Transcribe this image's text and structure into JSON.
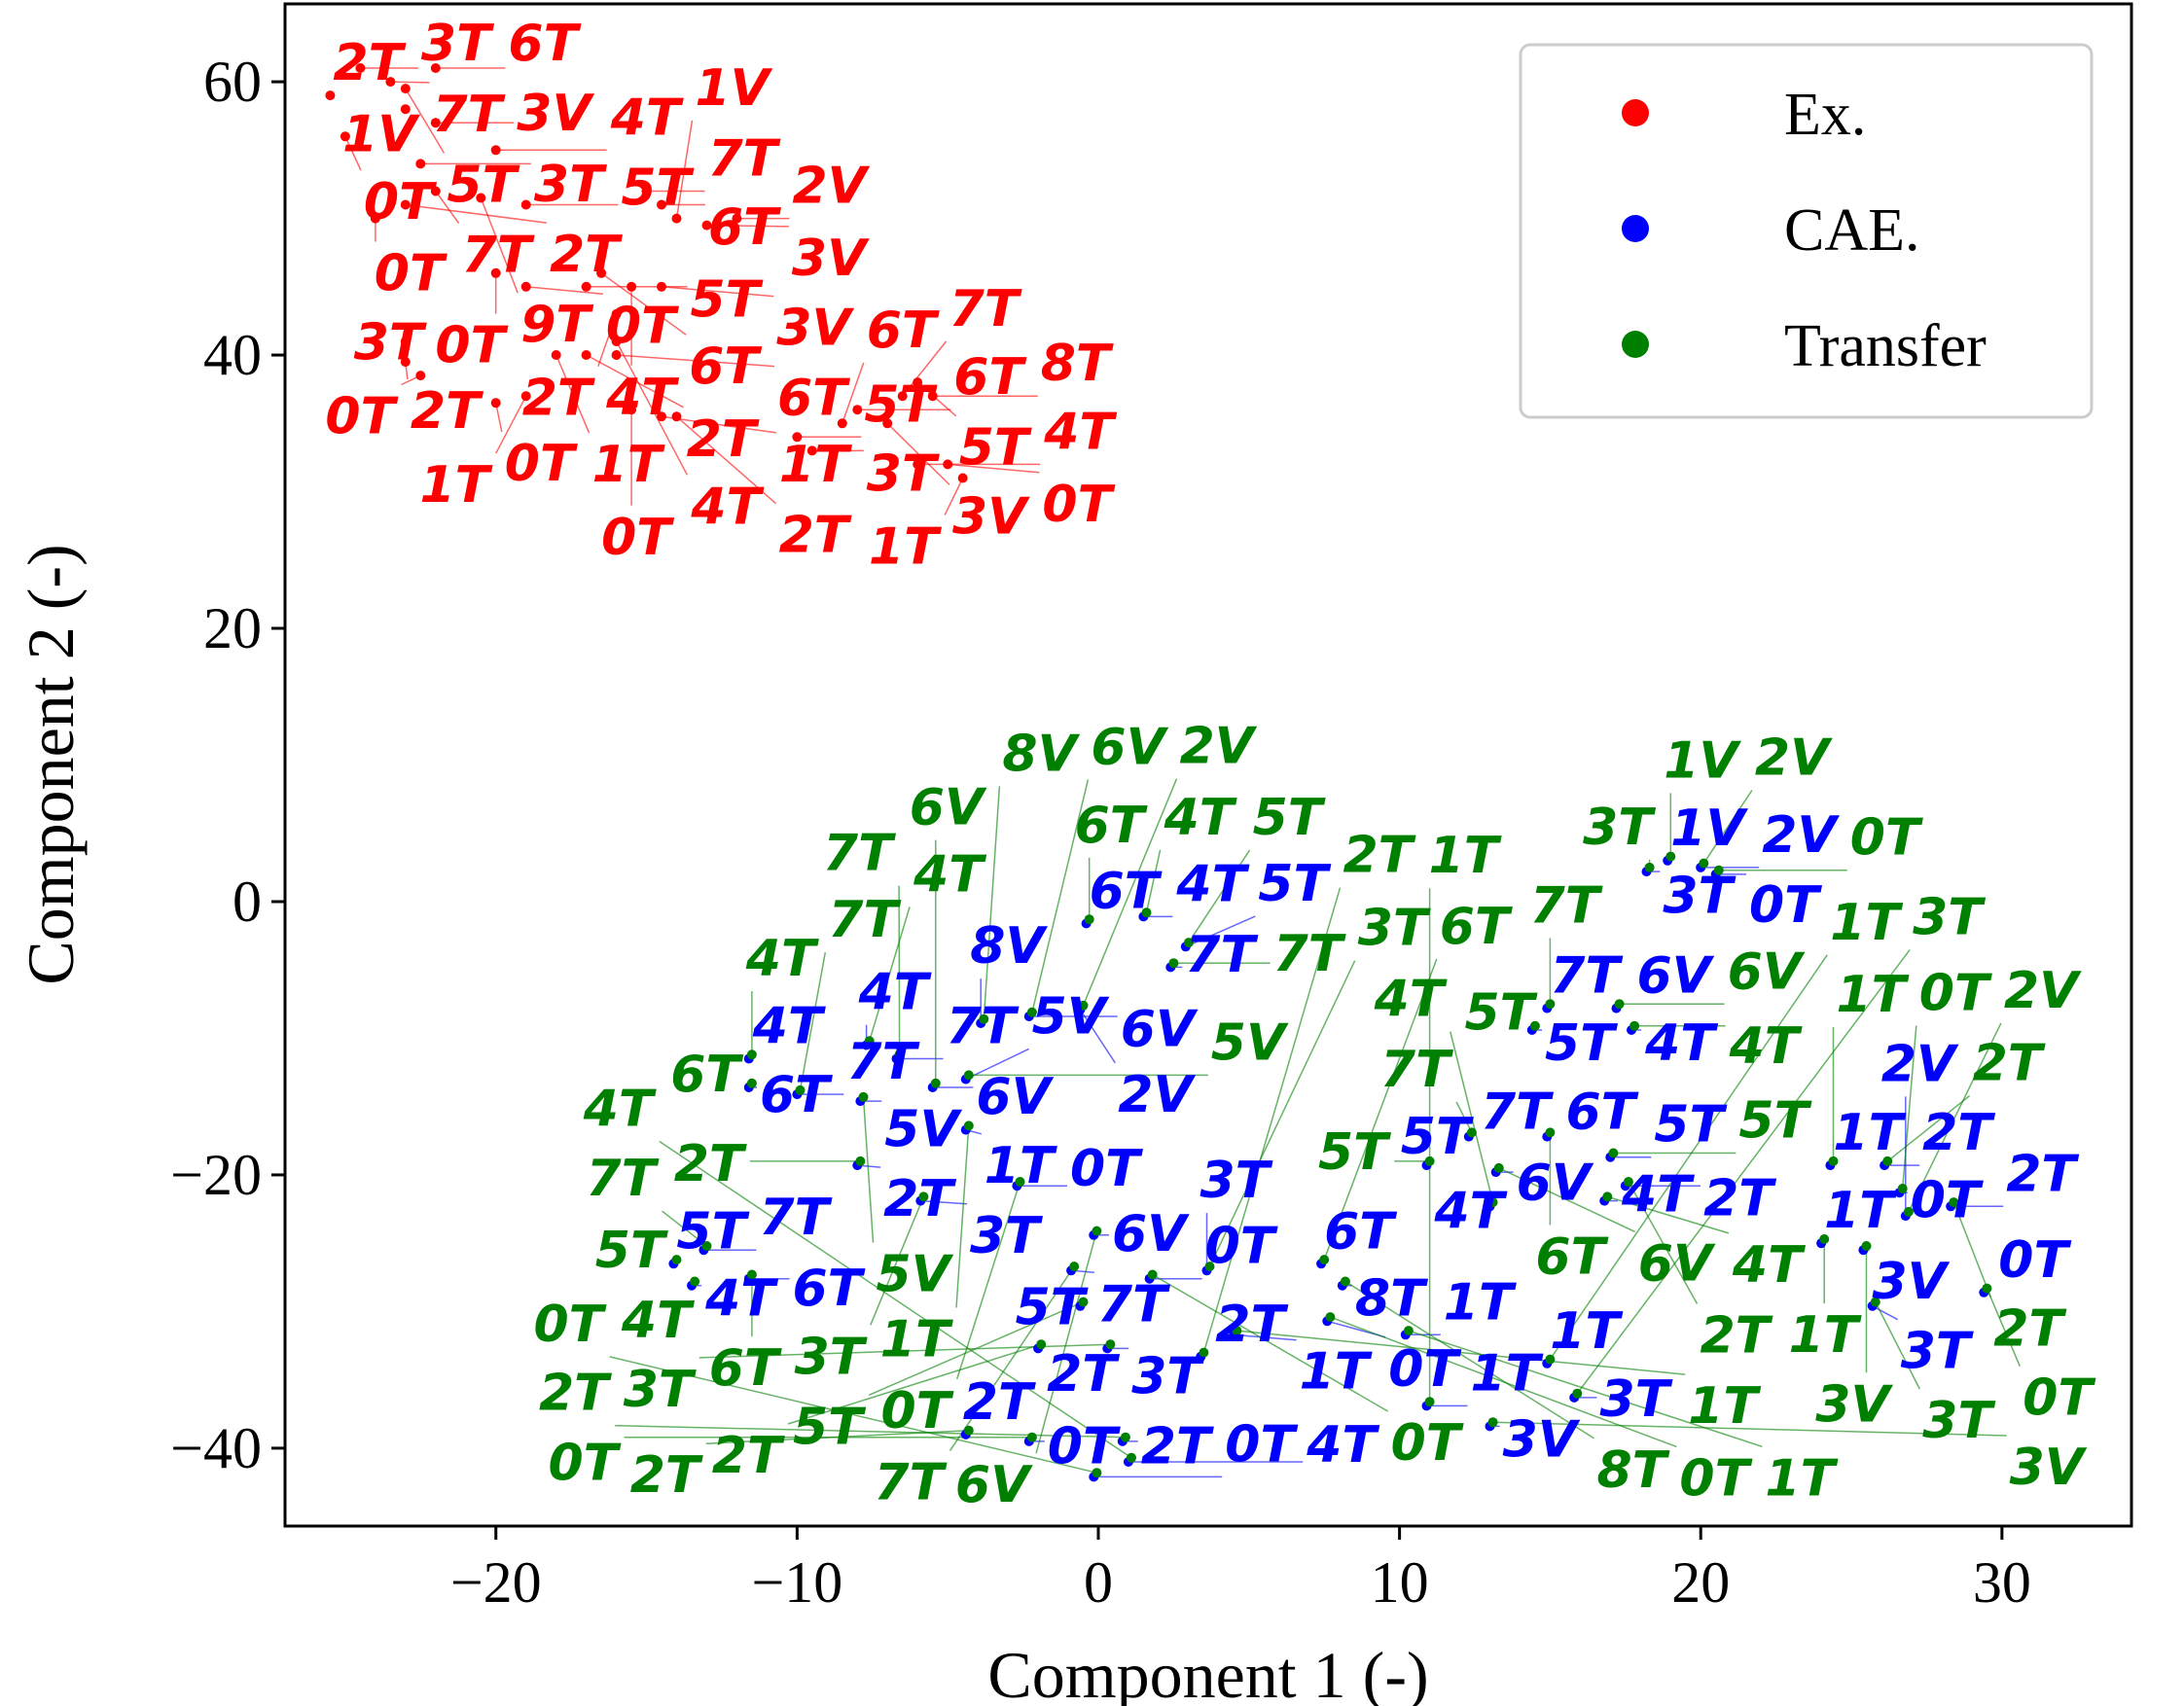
{
  "chart_data": {
    "type": "scatter",
    "xlabel": "Component 1 (-)",
    "ylabel": "Component 2 (-)",
    "xlim": [
      -27,
      34.3
    ],
    "ylim": [
      -45.7,
      65.7
    ],
    "xticks": [
      -20,
      -10,
      0,
      10,
      20,
      30
    ],
    "yticks": [
      -40,
      -20,
      0,
      20,
      40,
      60
    ],
    "xtick_labels": [
      "−20",
      "−10",
      "0",
      "10",
      "20",
      "30"
    ],
    "ytick_labels": [
      "−40",
      "−20",
      "0",
      "20",
      "40",
      "60"
    ],
    "grid": false,
    "legend_position": "top-right",
    "series": [
      {
        "name": "Ex.",
        "color": "#ff0000",
        "points": [
          [
            "2T",
            -25.5,
            59
          ],
          [
            "3T",
            -24.5,
            61
          ],
          [
            "7T",
            -23.5,
            60
          ],
          [
            "6T",
            -22,
            61
          ],
          [
            "1V",
            -23,
            58
          ],
          [
            "0T",
            -25,
            56
          ],
          [
            "3V",
            -22,
            57
          ],
          [
            "5T",
            -23,
            59.5
          ],
          [
            "3T",
            -22.5,
            54
          ],
          [
            "4T",
            -20,
            55
          ],
          [
            "7T",
            -22,
            52
          ],
          [
            "0T",
            -24,
            50
          ],
          [
            "2T",
            -23,
            51
          ],
          [
            "5T",
            -19,
            51
          ],
          [
            "9T",
            -20.5,
            51.5
          ],
          [
            "7T",
            -15,
            52
          ],
          [
            "6T",
            -14.5,
            51
          ],
          [
            "1V",
            -14,
            50
          ],
          [
            "2V",
            -12,
            50
          ],
          [
            "3V",
            -13,
            49.5
          ],
          [
            "0T",
            -20,
            46
          ],
          [
            "0T",
            -19,
            45
          ],
          [
            "5T",
            -17,
            45
          ],
          [
            "6T",
            -16.5,
            46
          ],
          [
            "4T",
            -15.5,
            45
          ],
          [
            "3V",
            -14.5,
            45
          ],
          [
            "2T",
            -16,
            43
          ],
          [
            "3T",
            -23,
            41
          ],
          [
            "2T",
            -23,
            39.5
          ],
          [
            "0T",
            -22.5,
            38.5
          ],
          [
            "1T",
            -18,
            40
          ],
          [
            "2T",
            -17,
            40
          ],
          [
            "0T",
            -20,
            36.5
          ],
          [
            "1T",
            -19,
            37
          ],
          [
            "6T",
            -16,
            40
          ],
          [
            "4T",
            -16,
            41
          ],
          [
            "0T",
            -15.5,
            36
          ],
          [
            "1T",
            -14.5,
            35.5
          ],
          [
            "2T",
            -14,
            35.5
          ],
          [
            "5T",
            -10,
            34
          ],
          [
            "3T",
            -9.5,
            33
          ],
          [
            "6T",
            -8.5,
            35
          ],
          [
            "6T",
            -8,
            36
          ],
          [
            "7T",
            -6.5,
            37
          ],
          [
            "5T",
            -6,
            38
          ],
          [
            "8T",
            -5.5,
            37
          ],
          [
            "3V",
            -7,
            35
          ],
          [
            "4T",
            -6,
            32
          ],
          [
            "0T",
            -5,
            32
          ],
          [
            "1T",
            -4.5,
            31
          ]
        ]
      },
      {
        "name": "CAE.",
        "color": "#0000ff",
        "points": [
          [
            "6T",
            -0.4,
            -1.6
          ],
          [
            "4T",
            1.5,
            -1.1
          ],
          [
            "7T",
            2.4,
            -4.8
          ],
          [
            "5T",
            2.9,
            -3.3
          ],
          [
            "1V",
            18.9,
            3.0
          ],
          [
            "2V",
            20.0,
            2.5
          ],
          [
            "3T",
            18.2,
            2.2
          ],
          [
            "0T",
            20.5,
            2.0
          ],
          [
            "7T",
            14.9,
            -7.8
          ],
          [
            "6V",
            17.2,
            -7.8
          ],
          [
            "5T",
            14.4,
            -9.4
          ],
          [
            "4T",
            17.7,
            -9.4
          ],
          [
            "7T",
            12.3,
            -17.2
          ],
          [
            "6T",
            14.9,
            -17.2
          ],
          [
            "5T",
            10.9,
            -19.3
          ],
          [
            "6V",
            13.2,
            -19.8
          ],
          [
            "5T",
            17.0,
            -18.7
          ],
          [
            "4T",
            13.0,
            -22.3
          ],
          [
            "4T",
            16.8,
            -21.9
          ],
          [
            "2T",
            17.5,
            -20.8
          ],
          [
            "1T",
            24.3,
            -19.3
          ],
          [
            "2T",
            26.1,
            -19.3
          ],
          [
            "0T",
            26.6,
            -21.3
          ],
          [
            "2T",
            28.3,
            -22.3
          ],
          [
            "1T",
            24.0,
            -25.0
          ],
          [
            "3V",
            25.4,
            -25.5
          ],
          [
            "3T",
            25.7,
            -29.6
          ],
          [
            "0T",
            29.4,
            -28.6
          ],
          [
            "2V",
            26.8,
            -23.0
          ],
          [
            "4T",
            -11.6,
            -11.5
          ],
          [
            "6T",
            -11.6,
            -13.6
          ],
          [
            "7T",
            -10.0,
            -14.1
          ],
          [
            "4T",
            -7.7,
            -10.5
          ],
          [
            "5V",
            -7.9,
            -14.6
          ],
          [
            "7T",
            -6.7,
            -11.5
          ],
          [
            "6V",
            -5.5,
            -13.6
          ],
          [
            "5V",
            -4.4,
            -13.0
          ],
          [
            "8V",
            -3.9,
            -8.9
          ],
          [
            "6V",
            -2.3,
            -8.4
          ],
          [
            "2V",
            -0.6,
            -7.9
          ],
          [
            "1T",
            -4.4,
            -16.7
          ],
          [
            "2T",
            -8.0,
            -19.3
          ],
          [
            "3T",
            -5.9,
            -21.9
          ],
          [
            "0T",
            -2.7,
            -20.8
          ],
          [
            "5T",
            -14.1,
            -26.5
          ],
          [
            "7T",
            -13.1,
            -25.5
          ],
          [
            "4T",
            -13.5,
            -28.1
          ],
          [
            "6T",
            -11.6,
            -27.6
          ],
          [
            "6V",
            -0.15,
            -24.4
          ],
          [
            "7T",
            -0.9,
            -27.0
          ],
          [
            "0T",
            1.7,
            -27.6
          ],
          [
            "3T",
            3.6,
            -27.0
          ],
          [
            "6T",
            7.4,
            -26.5
          ],
          [
            "8T",
            8.1,
            -28.1
          ],
          [
            "5T",
            -0.6,
            -29.6
          ],
          [
            "2T",
            -2.0,
            -32.7
          ],
          [
            "3T",
            0.3,
            -32.7
          ],
          [
            "2T",
            3.4,
            -33.3
          ],
          [
            "1T",
            4.5,
            -31.7
          ],
          [
            "0T",
            7.6,
            -30.7
          ],
          [
            "1T",
            10.2,
            -31.7
          ],
          [
            "1T",
            10.9,
            -36.9
          ],
          [
            "3V",
            13.0,
            -38.4
          ],
          [
            "1T",
            14.9,
            -33.8
          ],
          [
            "3T",
            15.8,
            -36.3
          ],
          [
            "2T",
            -4.4,
            -39.0
          ],
          [
            "0T",
            -2.3,
            -39.5
          ],
          [
            "2T",
            0.8,
            -39.5
          ],
          [
            "0T",
            -0.15,
            -42.1
          ],
          [
            "4T",
            1.0,
            -41.0
          ]
        ]
      },
      {
        "name": "Transfer",
        "color": "#008000",
        "points": [
          [
            "6T",
            -0.3,
            -1.3
          ],
          [
            "4T",
            1.6,
            -0.8
          ],
          [
            "7T",
            2.5,
            -4.5
          ],
          [
            "5T",
            3.0,
            -3.0
          ],
          [
            "1V",
            19.0,
            3.3
          ],
          [
            "2V",
            20.1,
            2.8
          ],
          [
            "3T",
            18.3,
            2.5
          ],
          [
            "0T",
            20.6,
            2.3
          ],
          [
            "7T",
            15.0,
            -7.5
          ],
          [
            "6V",
            17.3,
            -7.5
          ],
          [
            "5T",
            14.5,
            -9.1
          ],
          [
            "4T",
            17.8,
            -9.1
          ],
          [
            "7T",
            12.4,
            -16.9
          ],
          [
            "6T",
            15.0,
            -16.9
          ],
          [
            "5T",
            11.0,
            -19.0
          ],
          [
            "6V",
            13.3,
            -19.5
          ],
          [
            "5T",
            17.1,
            -18.4
          ],
          [
            "4T",
            13.1,
            -22.0
          ],
          [
            "4T",
            16.9,
            -21.6
          ],
          [
            "2T",
            17.6,
            -20.5
          ],
          [
            "1T",
            24.4,
            -19.0
          ],
          [
            "2T",
            26.2,
            -19.0
          ],
          [
            "0T",
            26.7,
            -21.0
          ],
          [
            "2T",
            28.4,
            -22.0
          ],
          [
            "1T",
            24.1,
            -24.7
          ],
          [
            "3V",
            25.5,
            -25.2
          ],
          [
            "3T",
            25.8,
            -29.3
          ],
          [
            "0T",
            29.5,
            -28.3
          ],
          [
            "2V",
            26.9,
            -22.7
          ],
          [
            "4T",
            -11.5,
            -11.2
          ],
          [
            "6T",
            -11.5,
            -13.3
          ],
          [
            "7T",
            -9.9,
            -13.8
          ],
          [
            "4T",
            -7.6,
            -10.2
          ],
          [
            "5V",
            -7.8,
            -14.3
          ],
          [
            "7T",
            -6.6,
            -11.2
          ],
          [
            "6V",
            -5.4,
            -13.3
          ],
          [
            "5V",
            -4.3,
            -12.7
          ],
          [
            "8V",
            -3.8,
            -8.6
          ],
          [
            "6V",
            -2.2,
            -8.1
          ],
          [
            "2V",
            -0.5,
            -7.6
          ],
          [
            "1T",
            -4.3,
            -16.4
          ],
          [
            "2T",
            -7.9,
            -19.0
          ],
          [
            "3T",
            -5.8,
            -21.6
          ],
          [
            "0T",
            -2.6,
            -20.5
          ],
          [
            "5T",
            -14.0,
            -26.2
          ],
          [
            "7T",
            -13.0,
            -25.2
          ],
          [
            "4T",
            -13.4,
            -27.8
          ],
          [
            "6T",
            -11.5,
            -27.3
          ],
          [
            "6V",
            -0.05,
            -24.1
          ],
          [
            "7T",
            -0.8,
            -26.7
          ],
          [
            "0T",
            1.8,
            -27.3
          ],
          [
            "3T",
            3.7,
            -26.7
          ],
          [
            "6T",
            7.5,
            -26.2
          ],
          [
            "8T",
            8.2,
            -27.8
          ],
          [
            "5T",
            -0.5,
            -29.3
          ],
          [
            "2T",
            -1.9,
            -32.4
          ],
          [
            "3T",
            0.4,
            -32.4
          ],
          [
            "2T",
            3.5,
            -33.0
          ],
          [
            "1T",
            4.6,
            -31.4
          ],
          [
            "0T",
            7.7,
            -30.4
          ],
          [
            "1T",
            10.3,
            -31.4
          ],
          [
            "1T",
            11.0,
            -36.6
          ],
          [
            "3V",
            13.1,
            -38.1
          ],
          [
            "1T",
            15.0,
            -33.5
          ],
          [
            "3T",
            15.9,
            -36.0
          ],
          [
            "2T",
            -4.3,
            -38.7
          ],
          [
            "0T",
            -2.2,
            -39.2
          ],
          [
            "2T",
            0.9,
            -39.2
          ],
          [
            "0T",
            -0.05,
            -41.8
          ],
          [
            "4T",
            1.1,
            -40.7
          ]
        ]
      }
    ]
  }
}
